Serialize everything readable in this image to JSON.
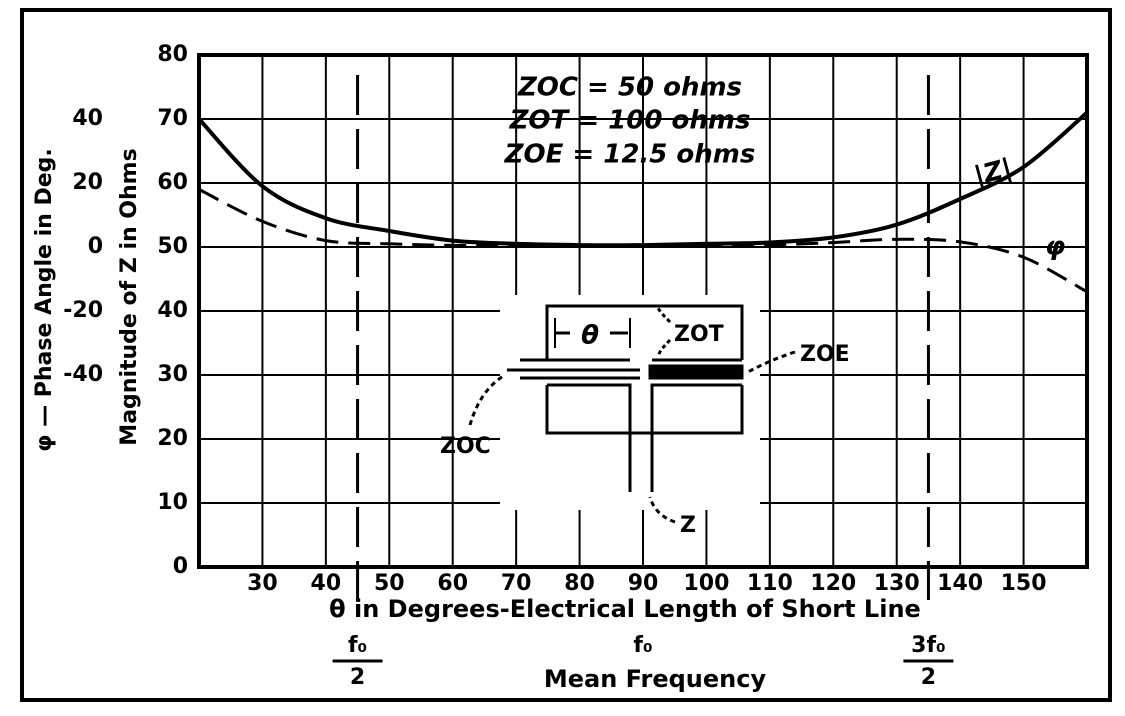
{
  "chart_data": {
    "type": "line",
    "x": [
      20,
      30,
      40,
      50,
      60,
      70,
      80,
      90,
      100,
      110,
      120,
      130,
      140,
      150,
      160
    ],
    "series": [
      {
        "name": "|Z|",
        "color": "#000000",
        "dash": "solid",
        "values": [
          70,
          59.5,
          54.5,
          52.5,
          51,
          50.5,
          50.3,
          50.3,
          50.5,
          50.7,
          51.5,
          53.5,
          57.5,
          62.5,
          71
        ]
      },
      {
        "name": "φ",
        "color": "#000000",
        "dash": "dashed",
        "axis": "y2",
        "values": [
          18,
          8,
          2,
          1,
          0.5,
          0.4,
          0.4,
          0.4,
          0.4,
          0.6,
          1.4,
          2.4,
          1.6,
          -3.2,
          -14
        ]
      }
    ],
    "xlabel": "θ in Degrees-Electrical Length of Short Line",
    "ylabel": "Magnitude of Z in Ohms",
    "y2label": "φ — Phase Angle in Deg.",
    "xlim": [
      20,
      160
    ],
    "xticks": [
      30,
      40,
      50,
      60,
      70,
      80,
      90,
      100,
      110,
      120,
      130,
      140,
      150
    ],
    "ylim": [
      0,
      80
    ],
    "yticks": [
      0,
      10,
      20,
      30,
      40,
      50,
      60,
      70,
      80
    ],
    "y2lim": [
      -100,
      60
    ],
    "y2ticks": [
      -40,
      -20,
      0,
      20,
      40
    ],
    "grid": true,
    "annotations": [
      "ZOC = 50 ohms",
      "ZOT = 100 ohms",
      "ZOE = 12.5 ohms"
    ],
    "vlines": [
      45,
      135
    ],
    "frequency_markers": [
      {
        "value": 45,
        "numerator": "f₀",
        "denominator": "2"
      },
      {
        "value": 90,
        "numerator": "f₀"
      },
      {
        "value": 135,
        "numerator": "3f₀",
        "denominator": "2"
      }
    ],
    "frequency_label": "Mean Frequency",
    "inset_labels": {
      "theta": "θ",
      "zot": "ZOT",
      "zoe": "ZOE",
      "zoc": "ZOC",
      "z": "Z"
    }
  }
}
